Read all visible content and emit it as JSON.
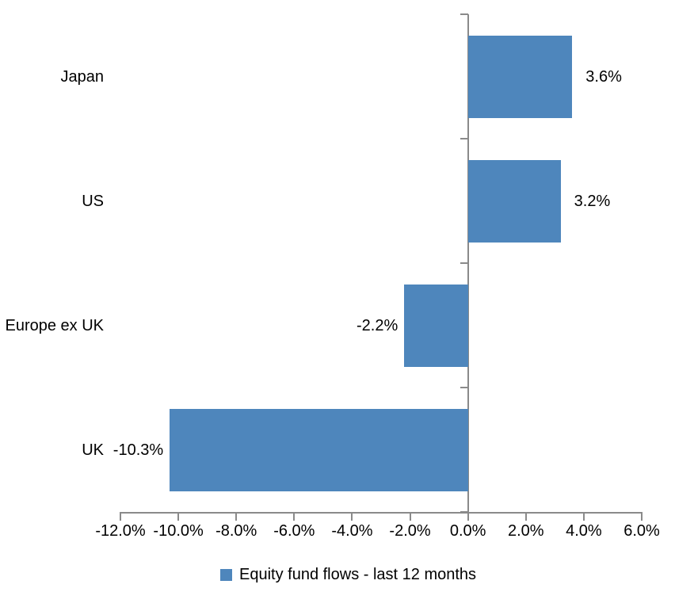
{
  "chart_data": {
    "type": "bar",
    "orientation": "horizontal",
    "title": "",
    "categories": [
      "Japan",
      "US",
      "Europe ex UK",
      "UK"
    ],
    "series": [
      {
        "name": "Equity fund flows - last 12 months",
        "values": [
          3.6,
          3.2,
          -2.2,
          -10.3
        ],
        "data_labels": [
          "3.6%",
          "3.2%",
          "-2.2%",
          "-10.3%"
        ],
        "color": "#4E86BC"
      }
    ],
    "xlabel": "",
    "ylabel": "",
    "xlim": [
      -12,
      6
    ],
    "x_ticks": [
      -12,
      -10,
      -8,
      -6,
      -4,
      -2,
      0,
      2,
      4,
      6
    ],
    "x_tick_labels": [
      "-12.0%",
      "-10.0%",
      "-8.0%",
      "-6.0%",
      "-4.0%",
      "-2.0%",
      "0.0%",
      "2.0%",
      "4.0%",
      "6.0%"
    ],
    "grid": false,
    "legend_position": "bottom",
    "axis_color": "#8A8A8A",
    "text_color": "#000000",
    "background_color": "#FFFFFF"
  },
  "legend": {
    "label": "Equity fund flows - last 12 months",
    "marker_color": "#4E86BC"
  }
}
